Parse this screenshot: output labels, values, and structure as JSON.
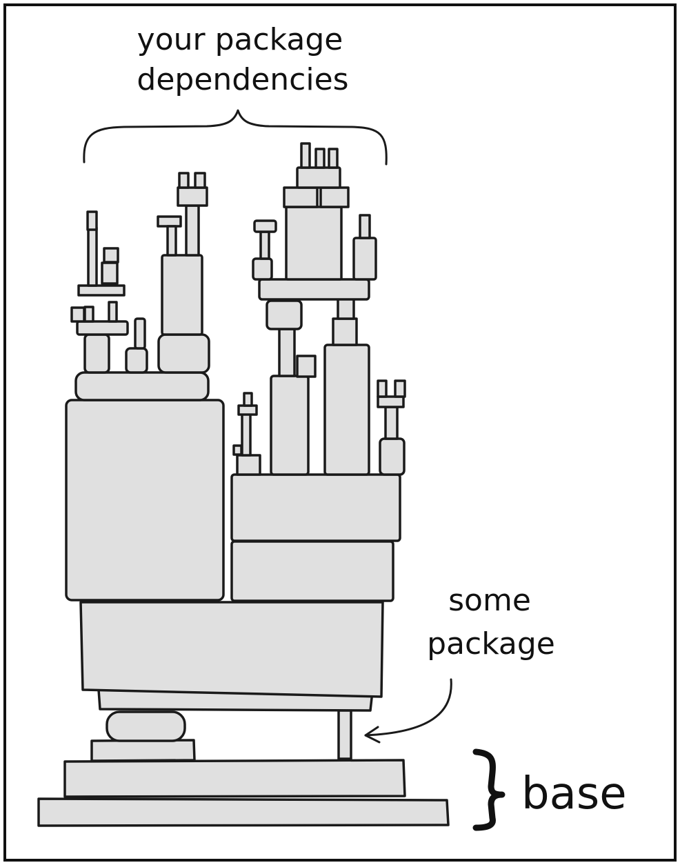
{
  "labels": {
    "dependencies_line1": "your package",
    "dependencies_line2": "dependencies",
    "some_package_line1": "some",
    "some_package_line2": "package",
    "base": "base"
  },
  "colors": {
    "block_fill": "#e0e0e0",
    "ink": "#1a1a1a",
    "background": "#ffffff"
  }
}
